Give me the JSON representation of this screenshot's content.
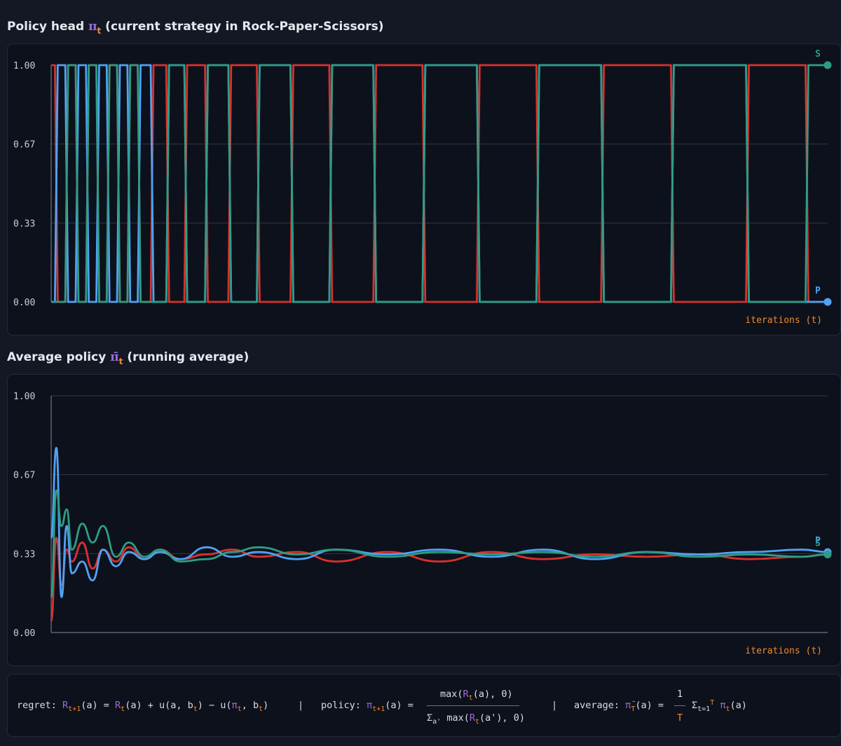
{
  "titles": {
    "top_prefix": "Policy head ",
    "top_symbol": "π",
    "top_sub": "t",
    "top_suffix": " (current strategy in Rock-Paper-Scissors)",
    "bottom_prefix": "Average policy ",
    "bottom_symbol": "π̄",
    "bottom_sub": "t",
    "bottom_suffix": " (running average)"
  },
  "colors": {
    "rock": "#d9312e",
    "paper": "#4fa3f5",
    "scissors": "#2e9d83",
    "axis_text": "#c9ced8",
    "orange": "#f0892d",
    "purple": "#9a6bd6"
  },
  "chart_data": [
    {
      "type": "line",
      "title": "Policy head πt (current strategy in Rock-Paper-Scissors)",
      "xlabel": "iterations (t)",
      "ylabel": "",
      "ylim": [
        0,
        1
      ],
      "yticks": [
        "0.00",
        "0.33",
        "0.67",
        "1.00"
      ],
      "grid": true,
      "xlim": [
        0,
        300
      ],
      "series": [
        {
          "key": "R",
          "color": "#d9312e",
          "x": [
            0,
            4,
            8,
            12,
            16,
            20,
            24,
            28,
            32,
            36,
            42,
            48,
            56,
            64,
            74,
            86,
            100,
            116,
            134,
            154,
            176,
            200,
            226,
            254,
            284,
            300
          ],
          "values": [
            1,
            0,
            1,
            0,
            1,
            0,
            1,
            0,
            1,
            0,
            1,
            0,
            1,
            0,
            1,
            0,
            1,
            0,
            1,
            0,
            1,
            0,
            1,
            0,
            1,
            0
          ]
        },
        {
          "key": "P",
          "color": "#4fa3f5",
          "x": [
            0,
            4,
            8,
            12,
            16,
            20,
            24,
            28,
            32,
            36,
            42,
            48,
            56,
            64,
            74,
            86,
            100,
            116,
            134,
            154,
            176,
            200,
            226,
            254,
            284,
            300
          ],
          "values": [
            0,
            1,
            0,
            1,
            0,
            1,
            0,
            1,
            0,
            1,
            0,
            1,
            0,
            1,
            0,
            1,
            0,
            1,
            0,
            1,
            0,
            1,
            0,
            1,
            0,
            0
          ]
        },
        {
          "key": "S",
          "color": "#2e9d83",
          "x": [
            0,
            4,
            8,
            12,
            16,
            20,
            24,
            28,
            32,
            36,
            42,
            48,
            56,
            64,
            74,
            86,
            100,
            116,
            134,
            154,
            176,
            200,
            226,
            254,
            284,
            300
          ],
          "values": [
            0,
            0,
            1,
            0,
            1,
            0,
            1,
            0,
            1,
            0,
            0,
            1,
            0,
            1,
            0,
            1,
            0,
            1,
            0,
            1,
            0,
            1,
            0,
            1,
            0,
            1
          ]
        }
      ],
      "end_labels": {
        "top": "S",
        "bottom": "P"
      }
    },
    {
      "type": "line",
      "title": "Average policy π̄t (running average)",
      "xlabel": "iterations (t)",
      "ylabel": "",
      "ylim": [
        0,
        1
      ],
      "yticks": [
        "0.00",
        "0.33",
        "0.67",
        "1.00"
      ],
      "grid": true,
      "xlim": [
        0,
        300
      ],
      "series": [
        {
          "key": "R",
          "color": "#d9312e",
          "x": [
            0,
            2,
            4,
            6,
            8,
            12,
            16,
            20,
            25,
            30,
            36,
            42,
            50,
            60,
            70,
            80,
            95,
            110,
            130,
            150,
            170,
            190,
            210,
            230,
            250,
            270,
            290,
            300
          ],
          "values": [
            0.05,
            0.4,
            0.2,
            0.35,
            0.3,
            0.38,
            0.27,
            0.35,
            0.3,
            0.36,
            0.31,
            0.35,
            0.31,
            0.33,
            0.35,
            0.32,
            0.34,
            0.3,
            0.34,
            0.3,
            0.34,
            0.31,
            0.33,
            0.32,
            0.33,
            0.31,
            0.32,
            0.33
          ]
        },
        {
          "key": "P",
          "color": "#4fa3f5",
          "x": [
            0,
            2,
            4,
            6,
            8,
            12,
            16,
            20,
            25,
            30,
            36,
            42,
            50,
            60,
            70,
            80,
            95,
            110,
            130,
            150,
            170,
            190,
            210,
            230,
            250,
            270,
            290,
            300
          ],
          "values": [
            0.4,
            0.78,
            0.15,
            0.45,
            0.25,
            0.3,
            0.22,
            0.35,
            0.28,
            0.34,
            0.31,
            0.34,
            0.31,
            0.36,
            0.32,
            0.34,
            0.31,
            0.35,
            0.33,
            0.35,
            0.32,
            0.35,
            0.31,
            0.34,
            0.33,
            0.34,
            0.35,
            0.34
          ]
        },
        {
          "key": "S",
          "color": "#2e9d83",
          "x": [
            0,
            2,
            4,
            6,
            8,
            12,
            16,
            20,
            25,
            30,
            36,
            42,
            50,
            60,
            70,
            80,
            95,
            110,
            130,
            150,
            170,
            190,
            210,
            230,
            250,
            270,
            290,
            300
          ],
          "values": [
            0.15,
            0.6,
            0.45,
            0.52,
            0.35,
            0.46,
            0.38,
            0.45,
            0.32,
            0.38,
            0.32,
            0.35,
            0.3,
            0.31,
            0.34,
            0.36,
            0.33,
            0.35,
            0.32,
            0.34,
            0.33,
            0.34,
            0.32,
            0.34,
            0.32,
            0.33,
            0.32,
            0.33
          ]
        }
      ],
      "end_labels": {
        "top": "P",
        "bottom": "S"
      }
    }
  ],
  "formula": {
    "regret_label": "regret:",
    "regret_R1": "R",
    "regret_R1_sub": "t+1",
    "regret_a1": "(a) = ",
    "regret_R2": "R",
    "regret_R2_sub": "t",
    "regret_rest1": "(a) + u(a, b",
    "regret_b_sub": "t",
    "regret_rest2": ") − u(",
    "regret_pi": "π",
    "regret_pi_sub": "t",
    "regret_rest3": ", b",
    "regret_b2_sub": "t",
    "regret_rest4": ")",
    "sep1": "|",
    "policy_label": "policy:",
    "policy_pi": "π",
    "policy_pi_sub": "t+1",
    "policy_eq": "(a) =",
    "num_pre": "max(",
    "num_R": "R",
    "num_R_sub": "t",
    "num_post": "(a), 0)",
    "den_sigma": "Σ",
    "den_sigma_sub": "a'",
    "den_pre": " max(",
    "den_R": "R",
    "den_R_sub": "t",
    "den_post": "(a'), 0)",
    "sep2": "|",
    "avg_label": "average:",
    "avg_pi": "π̄",
    "avg_pi_sub": "T",
    "avg_eq": "(a) =",
    "avg_num": "1",
    "avg_den": "T",
    "sum_sigma": "Σ",
    "sum_sub": "t=1",
    "sum_sup": "T",
    "sum_pi": " π",
    "sum_pi_sub": "t",
    "sum_post": "(a)"
  }
}
